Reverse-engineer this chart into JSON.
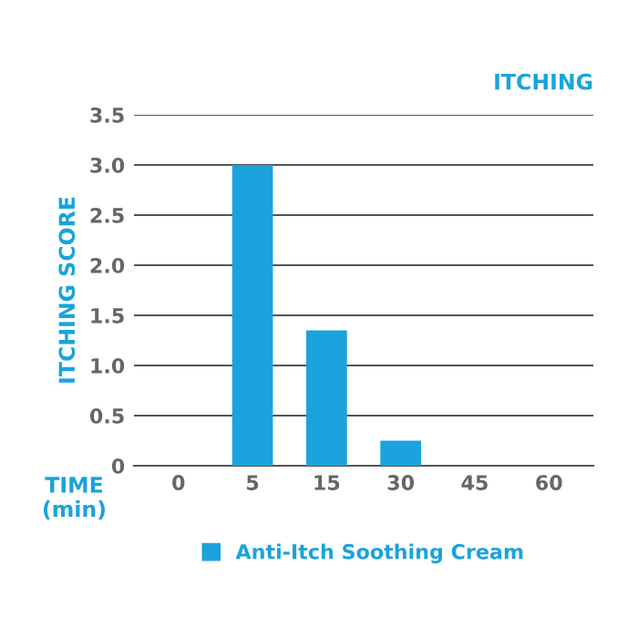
{
  "chart_data": {
    "type": "bar",
    "title": "ITCHING",
    "ylabel": "ITCHING SCORE",
    "xlabel": "TIME\n(min)",
    "categories": [
      "0",
      "5",
      "15",
      "30",
      "45",
      "60"
    ],
    "series": [
      {
        "name": "Anti-Itch Soothing Cream",
        "color": "#1aa3dc",
        "values": [
          0,
          3.0,
          1.35,
          0.25,
          0,
          0
        ]
      }
    ],
    "ylim": [
      0,
      3.5
    ],
    "yticks": [
      {
        "value": 0,
        "label": "0"
      },
      0.5,
      {
        "value": 1,
        "label": "1.0"
      },
      1.5,
      {
        "value": 2,
        "label": "2.0"
      },
      2.5,
      {
        "value": 3,
        "label": "3.0"
      },
      3.5
    ],
    "grid": "y",
    "legend": "bottom"
  }
}
